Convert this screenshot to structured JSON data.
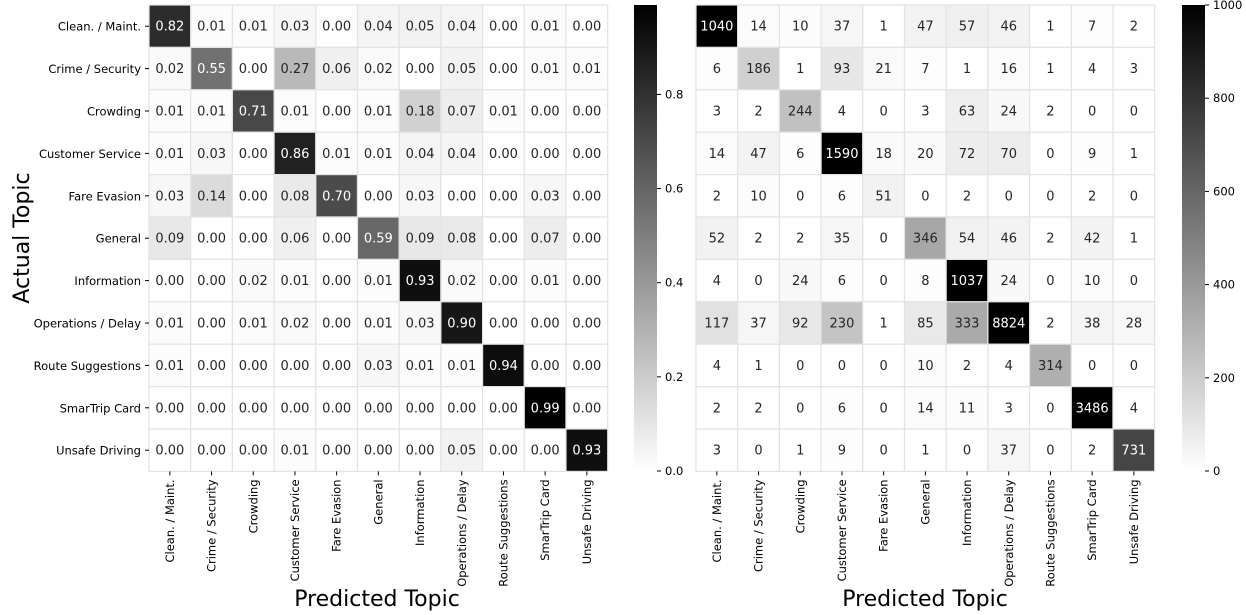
{
  "chart_data": [
    {
      "type": "heatmap",
      "title": "",
      "xlabel": "Predicted Topic",
      "ylabel": "Actual Topic",
      "categories": [
        "Clean. / Maint.",
        "Crime / Security",
        "Crowding",
        "Customer Service",
        "Fare Evasion",
        "General",
        "Information",
        "Operations / Delay",
        "Route Suggestions",
        "SmarTrip Card",
        "Unsafe Driving"
      ],
      "value_format": "fixed2",
      "values": [
        [
          0.82,
          0.01,
          0.01,
          0.03,
          0.0,
          0.04,
          0.05,
          0.04,
          0.0,
          0.01,
          0.0
        ],
        [
          0.02,
          0.55,
          0.0,
          0.27,
          0.06,
          0.02,
          0.0,
          0.05,
          0.0,
          0.01,
          0.01
        ],
        [
          0.01,
          0.01,
          0.71,
          0.01,
          0.0,
          0.01,
          0.18,
          0.07,
          0.01,
          0.0,
          0.0
        ],
        [
          0.01,
          0.03,
          0.0,
          0.86,
          0.01,
          0.01,
          0.04,
          0.04,
          0.0,
          0.0,
          0.0
        ],
        [
          0.03,
          0.14,
          0.0,
          0.08,
          0.7,
          0.0,
          0.03,
          0.0,
          0.0,
          0.03,
          0.0
        ],
        [
          0.09,
          0.0,
          0.0,
          0.06,
          0.0,
          0.59,
          0.09,
          0.08,
          0.0,
          0.07,
          0.0
        ],
        [
          0.0,
          0.0,
          0.02,
          0.01,
          0.0,
          0.01,
          0.93,
          0.02,
          0.0,
          0.01,
          0.0
        ],
        [
          0.01,
          0.0,
          0.01,
          0.02,
          0.0,
          0.01,
          0.03,
          0.9,
          0.0,
          0.0,
          0.0
        ],
        [
          0.01,
          0.0,
          0.0,
          0.0,
          0.0,
          0.03,
          0.01,
          0.01,
          0.94,
          0.0,
          0.0
        ],
        [
          0.0,
          0.0,
          0.0,
          0.0,
          0.0,
          0.0,
          0.0,
          0.0,
          0.0,
          0.99,
          0.0
        ],
        [
          0.0,
          0.0,
          0.0,
          0.01,
          0.0,
          0.0,
          0.0,
          0.05,
          0.0,
          0.0,
          0.93
        ]
      ],
      "colorbar": {
        "min": 0,
        "max": 0.99,
        "ticks": [
          0.0,
          0.2,
          0.4,
          0.6,
          0.8
        ],
        "tick_labels": [
          "0.0",
          "0.2",
          "0.4",
          "0.6",
          "0.8"
        ],
        "colormap": "white-to-black"
      }
    },
    {
      "type": "heatmap",
      "title": "",
      "xlabel": "Predicted Topic",
      "ylabel": "",
      "categories": [
        "Clean. / Maint.",
        "Crime / Security",
        "Crowding",
        "Customer Service",
        "Fare Evasion",
        "General",
        "Information",
        "Operations / Delay",
        "Route Suggestions",
        "SmarTrip Card",
        "Unsafe Driving"
      ],
      "value_format": "int",
      "values": [
        [
          1040,
          14,
          10,
          37,
          1,
          47,
          57,
          46,
          1,
          7,
          2
        ],
        [
          6,
          186,
          1,
          93,
          21,
          7,
          1,
          16,
          1,
          4,
          3
        ],
        [
          3,
          2,
          244,
          4,
          0,
          3,
          63,
          24,
          2,
          0,
          0
        ],
        [
          14,
          47,
          6,
          1590,
          18,
          20,
          72,
          70,
          0,
          9,
          1
        ],
        [
          2,
          10,
          0,
          6,
          51,
          0,
          2,
          0,
          0,
          2,
          0
        ],
        [
          52,
          2,
          2,
          35,
          0,
          346,
          54,
          46,
          2,
          42,
          1
        ],
        [
          4,
          0,
          24,
          6,
          0,
          8,
          1037,
          24,
          0,
          10,
          0
        ],
        [
          117,
          37,
          92,
          230,
          1,
          85,
          333,
          8824,
          2,
          38,
          28
        ],
        [
          4,
          1,
          0,
          0,
          0,
          10,
          2,
          4,
          314,
          0,
          0
        ],
        [
          2,
          2,
          0,
          6,
          0,
          14,
          11,
          3,
          0,
          3486,
          4
        ],
        [
          3,
          0,
          1,
          9,
          0,
          1,
          0,
          37,
          0,
          2,
          731
        ]
      ],
      "colorbar": {
        "min": 0,
        "max": 1000,
        "ticks": [
          0,
          200,
          400,
          600,
          800,
          1000
        ],
        "tick_labels": [
          "0",
          "200",
          "400",
          "600",
          "800",
          "1000"
        ],
        "colormap": "white-to-black"
      }
    }
  ]
}
